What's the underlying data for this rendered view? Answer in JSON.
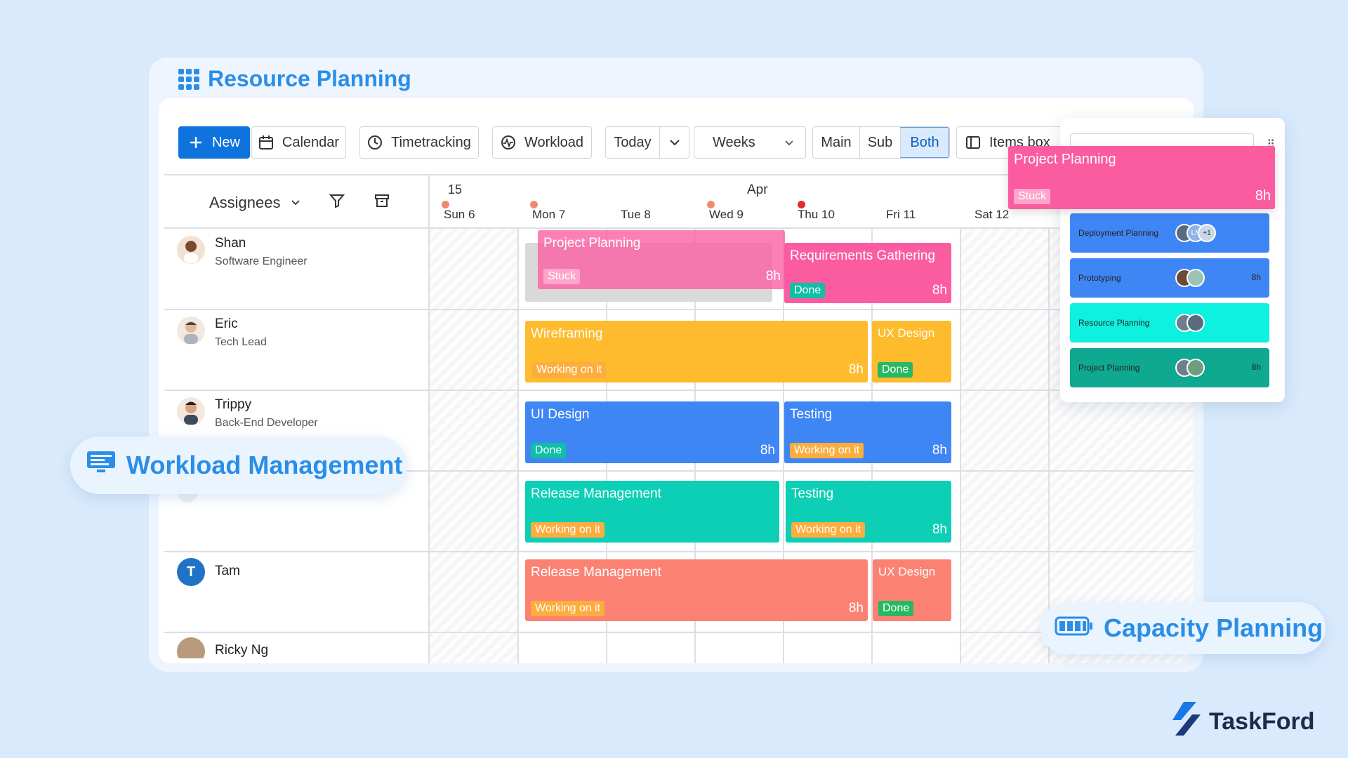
{
  "app": {
    "title": "Resource Planning"
  },
  "toolbar": {
    "new_label": "New",
    "calendar_label": "Calendar",
    "timetracking_label": "Timetracking",
    "workload_label": "Workload",
    "today_label": "Today",
    "weeks_label": "Weeks",
    "view_modes": [
      "Main",
      "Sub",
      "Both"
    ],
    "view_mode_selected": "Both",
    "items_box_label": "Items box"
  },
  "sidebar_header": {
    "assignees_label": "Assignees"
  },
  "calendar": {
    "week_number": "15",
    "month": "Apr",
    "days": [
      {
        "label": "Sun",
        "num": "6"
      },
      {
        "label": "Mon",
        "num": "7"
      },
      {
        "label": "Tue",
        "num": "8"
      },
      {
        "label": "Wed",
        "num": "9"
      },
      {
        "label": "Thu",
        "num": "10"
      },
      {
        "label": "Fri",
        "num": "11"
      },
      {
        "label": "Sat",
        "num": "12"
      }
    ]
  },
  "people": [
    {
      "name": "Shan",
      "role": "Software Engineer"
    },
    {
      "name": "Eric",
      "role": "Tech Lead"
    },
    {
      "name": "Trippy",
      "role": "Back-End Developer"
    },
    {
      "name": "",
      "role": "Front-End Developer"
    },
    {
      "name": "Tam",
      "role": "",
      "initial": "T"
    },
    {
      "name": "Ricky Ng",
      "role": ""
    }
  ],
  "tasks": [
    {
      "name": "Project Planning",
      "status": "Stuck",
      "hours": "8h"
    },
    {
      "name": "Requirements Gathering",
      "status": "Done",
      "hours": "8h"
    },
    {
      "name": "Wireframing",
      "status": "Working on it",
      "hours": "8h"
    },
    {
      "name": "UX Design",
      "status": "Done",
      "hours": ""
    },
    {
      "name": "UI Design",
      "status": "Done",
      "hours": "8h"
    },
    {
      "name": "Testing",
      "status": "Working on it",
      "hours": "8h"
    },
    {
      "name": "Release Management",
      "status": "Working on it",
      "hours": ""
    },
    {
      "name": "Testing",
      "status": "Working on it",
      "hours": "8h"
    },
    {
      "name": "Release Management",
      "status": "Working on it",
      "hours": "8h"
    },
    {
      "name": "UX Design",
      "status": "Done",
      "hours": ""
    }
  ],
  "dragging_card": {
    "name": "Project Planning",
    "status": "Stuck",
    "hours": "8h"
  },
  "items_box": {
    "items": [
      {
        "name": "Deployment Planning",
        "extra": "+1",
        "initials": "LN",
        "hours": ""
      },
      {
        "name": "Prototyping",
        "hours": "8h"
      },
      {
        "name": "Resource Planning",
        "hours": ""
      },
      {
        "name": "Project Planning",
        "hours": "8h"
      }
    ]
  },
  "labels": {
    "workload_management": "Workload Management",
    "capacity_planning": "Capacity Planning"
  },
  "brand": {
    "name": "TaskFord"
  },
  "colors": {
    "accent": "#2a8ee6",
    "primary_button": "#0f73de",
    "pink": "#fb5ca0",
    "yellow": "#fdbb2d",
    "blue": "#3f86f5",
    "teal": "#0ccfb5",
    "salmon": "#fb8273",
    "status_stuck": "#ffa5cc",
    "status_done": "#0fbfa6",
    "status_done_green": "#28b862",
    "status_working": "#fdad3e"
  }
}
